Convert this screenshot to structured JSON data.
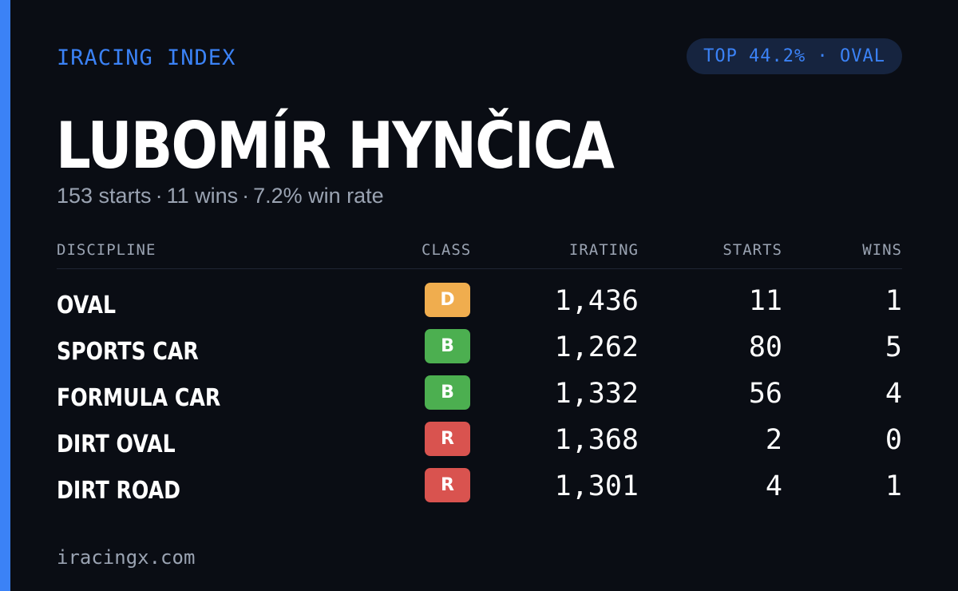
{
  "brand": "IRACING INDEX",
  "rank_badge": "TOP 44.2% · OVAL",
  "driver": {
    "name": "LUBOMÍR HYNČICA"
  },
  "summary": {
    "starts": "153 starts",
    "wins": "11 wins",
    "win_rate": "7.2% win rate",
    "separator": "·"
  },
  "table": {
    "headers": {
      "discipline": "DISCIPLINE",
      "class": "CLASS",
      "irating": "IRATING",
      "starts": "STARTS",
      "wins": "WINS"
    },
    "rows": [
      {
        "discipline": "OVAL",
        "class": "D",
        "class_color": "#f0ad4e",
        "irating": "1,436",
        "starts": "11",
        "wins": "1"
      },
      {
        "discipline": "SPORTS CAR",
        "class": "B",
        "class_color": "#4caf50",
        "irating": "1,262",
        "starts": "80",
        "wins": "5"
      },
      {
        "discipline": "FORMULA CAR",
        "class": "B",
        "class_color": "#4caf50",
        "irating": "1,332",
        "starts": "56",
        "wins": "4"
      },
      {
        "discipline": "DIRT OVAL",
        "class": "R",
        "class_color": "#d9534f",
        "irating": "1,368",
        "starts": "2",
        "wins": "0"
      },
      {
        "discipline": "DIRT ROAD",
        "class": "R",
        "class_color": "#d9534f",
        "irating": "1,301",
        "starts": "4",
        "wins": "1"
      }
    ]
  },
  "footer": "iracingx.com",
  "colors": {
    "accent": "#3b82f6",
    "background": "#0a0d14",
    "badge_background": "#16243f",
    "muted_text": "#9aa3b2"
  }
}
